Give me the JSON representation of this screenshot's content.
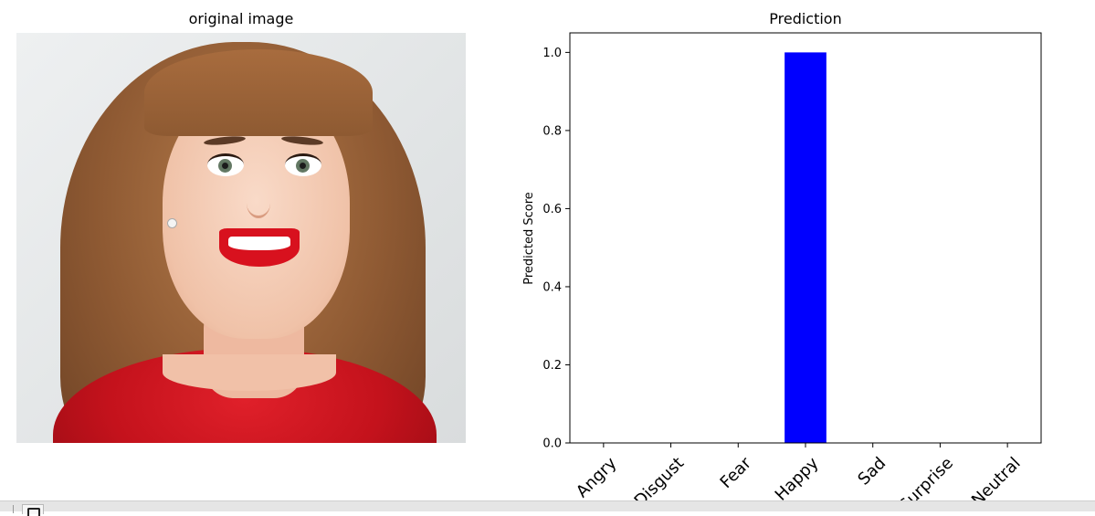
{
  "figure": {
    "image_panel_title": "original image",
    "image_description_icon": "portrait-photo"
  },
  "chart_data": {
    "type": "bar",
    "title": "Prediction",
    "xlabel": "",
    "ylabel": "Predicted Score",
    "categories": [
      "Angry",
      "Disgust",
      "Fear",
      "Happy",
      "Sad",
      "Surprise",
      "Neutral"
    ],
    "values": [
      0.0,
      0.0,
      0.0,
      1.0,
      0.0,
      0.0,
      0.0
    ],
    "ylim": [
      0,
      1.05
    ],
    "yticks": [
      "0.0",
      "0.2",
      "0.4",
      "0.6",
      "0.8",
      "1.0"
    ],
    "bar_color": "#0000ff",
    "grid": false,
    "legend": "none",
    "xtick_rotation_deg": 45
  },
  "toolbar": {
    "icons": [
      "grip-icon",
      "save-icon"
    ]
  }
}
